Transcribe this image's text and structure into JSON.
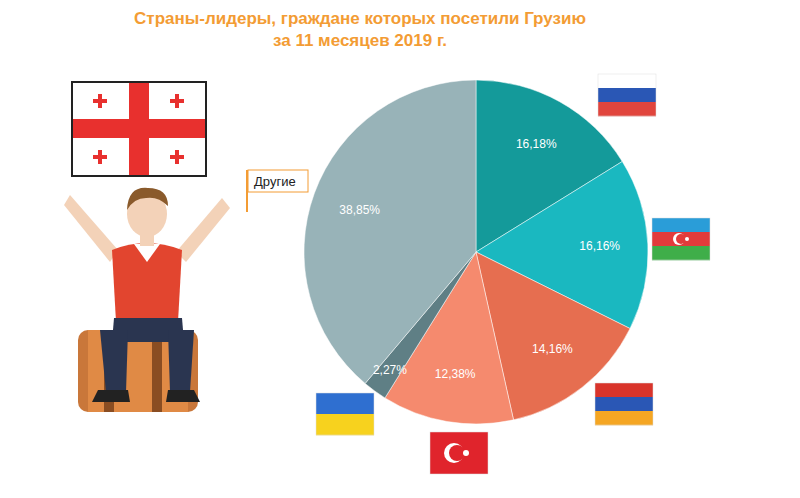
{
  "chart_data": {
    "type": "pie",
    "title": "Страны-лидеры, граждане которых посетили Грузию\nза 11 месяцев 2019 г.",
    "categories": [
      null,
      null,
      null,
      null,
      null,
      "Другие"
    ],
    "values": [
      16.18,
      16.16,
      14.16,
      12.38,
      2.27,
      38.85
    ],
    "value_labels": [
      "16,18%",
      "16,16%",
      "14,16%",
      "12,38%",
      "2,27%",
      "38,85%"
    ],
    "colors": [
      "#149a9a",
      "#1ab8c0",
      "#e66e50",
      "#f58a6e",
      "#5f7f85",
      "#98b3b8"
    ],
    "data_labels": true
  }
}
